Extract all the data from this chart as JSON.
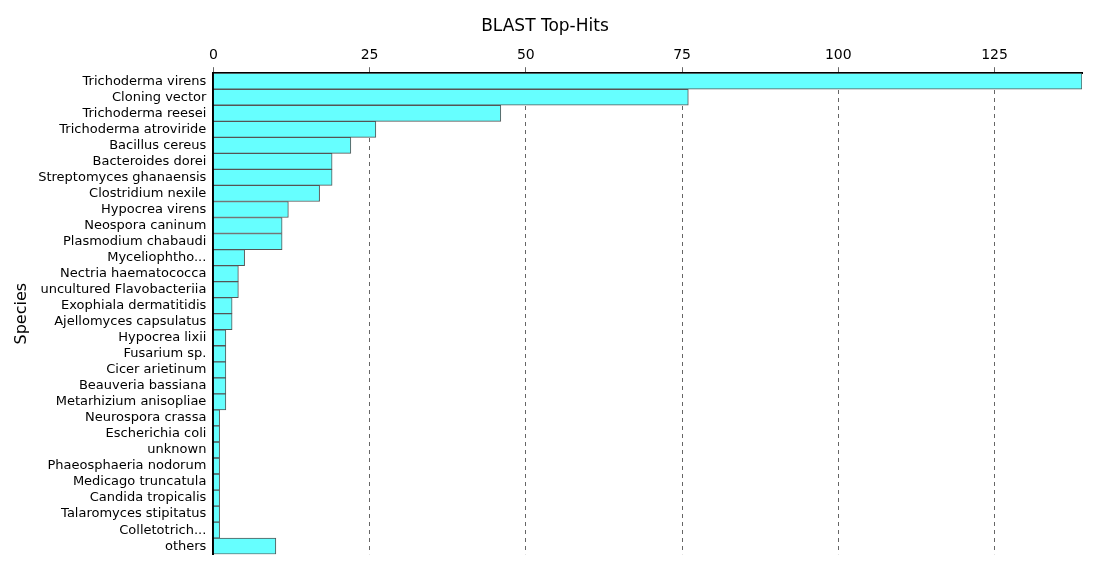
{
  "chart_data": {
    "type": "bar",
    "orientation": "horizontal",
    "title": "BLAST Top-Hits",
    "ylabel": "Species",
    "categories": [
      "Trichoderma virens",
      "Cloning vector",
      "Trichoderma reesei",
      "Trichoderma atroviride",
      "Bacillus cereus",
      "Bacteroides dorei",
      "Streptomyces ghanaensis",
      "Clostridium nexile",
      "Hypocrea virens",
      "Neospora caninum",
      "Plasmodium chabaudi",
      "Myceliophtho...",
      "Nectria haematococca",
      "uncultured Flavobacteriia",
      "Exophiala dermatitidis",
      "Ajellomyces capsulatus",
      "Hypocrea lixii",
      "Fusarium sp.",
      "Cicer arietinum",
      "Beauveria bassiana",
      "Metarhizium anisopliae",
      "Neurospora crassa",
      "Escherichia coli",
      "unknown",
      "Phaeosphaeria nodorum",
      "Medicago truncatula",
      "Candida tropicalis",
      "Talaromyces stipitatus",
      "Colletotrich...",
      "others"
    ],
    "values": [
      139,
      76,
      46,
      26,
      22,
      19,
      19,
      17,
      12,
      11,
      11,
      5,
      4,
      4,
      3,
      3,
      2,
      2,
      2,
      2,
      2,
      1,
      1,
      1,
      1,
      1,
      1,
      1,
      1,
      10
    ],
    "color": "#66ffff",
    "xlim": [
      0,
      139
    ],
    "xticks": [
      0,
      25,
      50,
      75,
      100,
      125
    ],
    "grid": "x",
    "legend": false
  }
}
